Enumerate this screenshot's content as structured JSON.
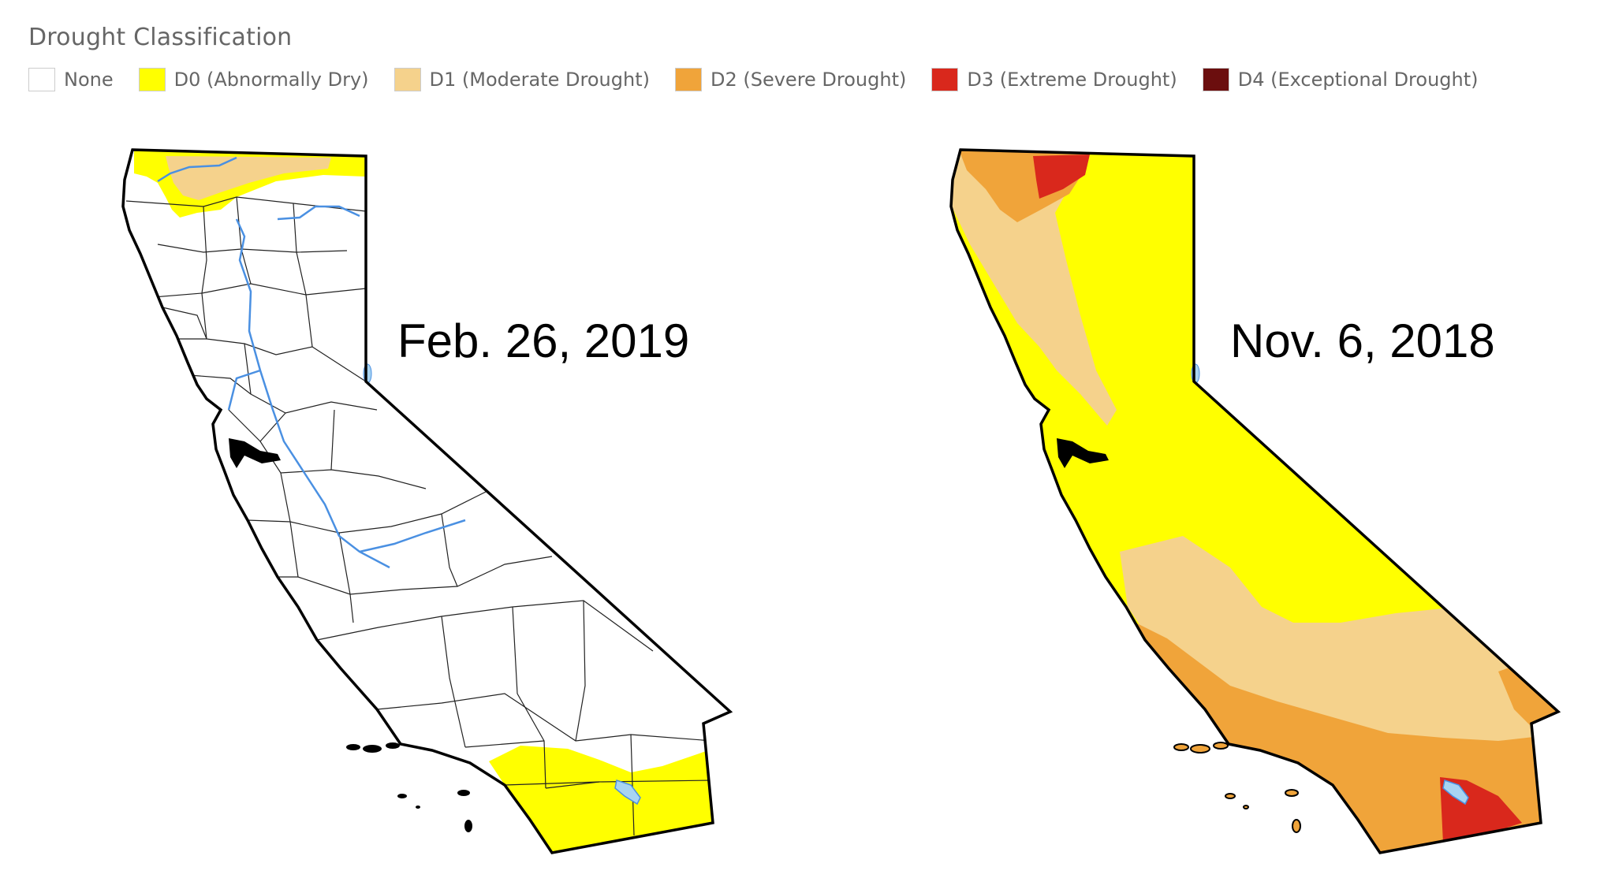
{
  "legend": {
    "title": "Drought Classification",
    "items": [
      {
        "label": "None",
        "color": "#ffffff"
      },
      {
        "label": "D0 (Abnormally Dry)",
        "color": "#ffff00"
      },
      {
        "label": "D1 (Moderate Drought)",
        "color": "#fcd37f"
      },
      {
        "label": "D2 (Severe Drought)",
        "color": "#ffaa00"
      },
      {
        "label": "D3 (Extreme Drought)",
        "color": "#e60000"
      },
      {
        "label": "D4 (Exceptional Drought)",
        "color": "#730000"
      }
    ]
  },
  "maps": [
    {
      "date": "Feb. 26, 2019"
    },
    {
      "date": "Nov. 6, 2018"
    }
  ],
  "colors": {
    "none": "#ffffff",
    "d0": "#ffff00",
    "d1": "#f5d28c",
    "d2": "#f0a43a",
    "d3": "#d9281c",
    "d4": "#6b0e0e",
    "water": "#a8d4f2",
    "river": "#4a90e2",
    "border": "#000000"
  }
}
